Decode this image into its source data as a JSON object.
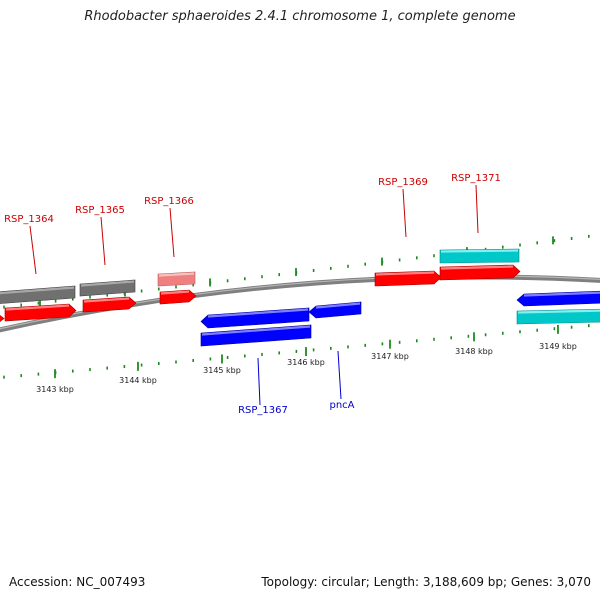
{
  "title": "Rhodobacter sphaeroides 2.4.1 chromosome 1, complete genome",
  "footer": {
    "accession": "Accession: NC_007493",
    "summary": "Topology: circular; Length: 3,188,609 bp; Genes: 3,070"
  },
  "colors": {
    "backbone": "#7f7f7f",
    "tick": "#1e8a1e",
    "label_forward": "#cc0000",
    "label_reverse": "#0000cc",
    "red": "#ff0000",
    "pink": "#f08080",
    "gray": "#707070",
    "cyan": "#00c8c8",
    "blue": "#0000ff"
  },
  "ticks": [
    {
      "label": "3143 kbp"
    },
    {
      "label": "3144 kbp"
    },
    {
      "label": "3145 kbp"
    },
    {
      "label": "3146 kbp"
    },
    {
      "label": "3147 kbp"
    },
    {
      "label": "3148 kbp"
    },
    {
      "label": "3149 kbp"
    }
  ],
  "gene_labels": [
    {
      "text": "RSP_1364",
      "strand": "forward"
    },
    {
      "text": "RSP_1365",
      "strand": "forward"
    },
    {
      "text": "RSP_1366",
      "strand": "forward"
    },
    {
      "text": "RSP_1369",
      "strand": "forward"
    },
    {
      "text": "RSP_1371",
      "strand": "forward"
    },
    {
      "text": "RSP_1367",
      "strand": "reverse"
    },
    {
      "text": "pncA",
      "strand": "reverse"
    }
  ],
  "features": [
    {
      "color": "gray",
      "direction": "plain"
    },
    {
      "color": "gray",
      "direction": "plain"
    },
    {
      "color": "pink",
      "direction": "plain"
    },
    {
      "color": "cyan",
      "direction": "plain"
    },
    {
      "color": "red",
      "direction": "right"
    },
    {
      "color": "red",
      "direction": "right"
    },
    {
      "color": "red",
      "direction": "right"
    },
    {
      "color": "red",
      "direction": "right"
    },
    {
      "color": "red",
      "direction": "right"
    },
    {
      "color": "red",
      "direction": "right"
    },
    {
      "color": "blue",
      "direction": "left"
    },
    {
      "color": "blue",
      "direction": "left"
    },
    {
      "color": "blue",
      "direction": "plain"
    },
    {
      "color": "blue",
      "direction": "left"
    },
    {
      "color": "cyan",
      "direction": "plain"
    }
  ]
}
